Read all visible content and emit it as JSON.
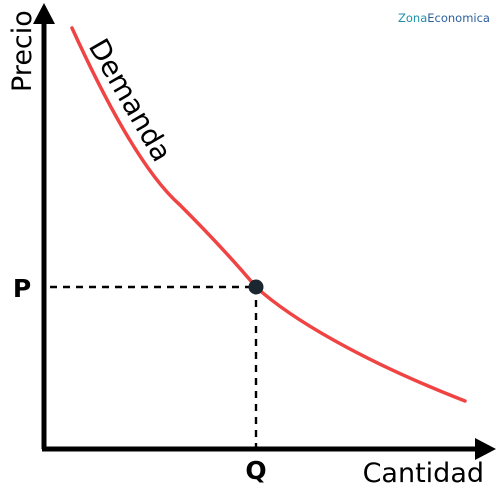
{
  "brand": {
    "part1": "Zona",
    "part2": "Economica",
    "color1": "#1f8fa8",
    "color2": "#2b5f9e"
  },
  "axes": {
    "y_label": "Precio",
    "x_label": "Cantidad"
  },
  "curve": {
    "label": "Demanda",
    "color": "#f04444"
  },
  "equilibrium": {
    "price_label": "P",
    "quantity_label": "Q",
    "marker_color": "#1a2630"
  }
}
